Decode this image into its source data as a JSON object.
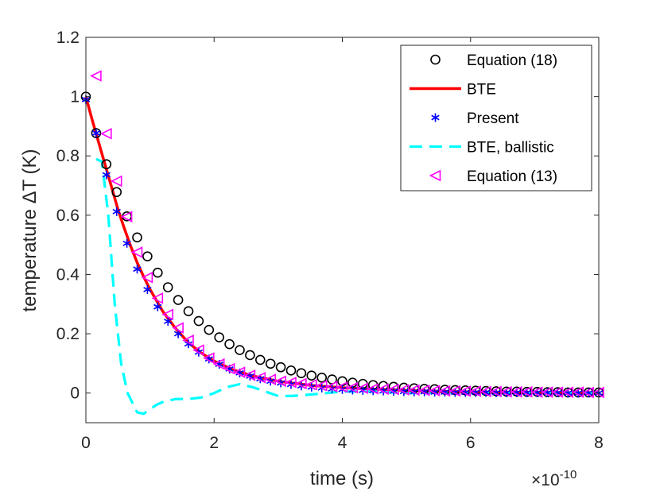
{
  "chart_data": {
    "type": "line",
    "xlabel": "time (s)",
    "ylabel": "temperature ΔT (K)",
    "x_exponent_label": "×10",
    "x_exponent": "-10",
    "xlim": [
      0,
      8e-10
    ],
    "ylim": [
      -0.1,
      1.2
    ],
    "xticks": [
      0,
      2e-10,
      4e-10,
      6e-10,
      8e-10
    ],
    "xtick_labels": [
      "0",
      "2",
      "4",
      "6",
      "8"
    ],
    "yticks": [
      0,
      0.2,
      0.4,
      0.6,
      0.8,
      1.0,
      1.2
    ],
    "ytick_labels": [
      "0",
      "0.2",
      "0.4",
      "0.6",
      "0.8",
      "1",
      "1.2"
    ],
    "grid": false,
    "legend_position": "top-right",
    "series": [
      {
        "name": "Equation (18)",
        "style": "markers",
        "marker": "circle",
        "color": "#000000",
        "x": [
          0,
          1.6e-11,
          3.2e-11,
          4.8e-11,
          6.4e-11,
          8e-11,
          9.6e-11,
          1.12e-10,
          1.28e-10,
          1.44e-10,
          1.6e-10,
          1.76e-10,
          1.92e-10,
          2.08e-10,
          2.24e-10,
          2.4e-10,
          2.56e-10,
          2.72e-10,
          2.88e-10,
          3.04e-10,
          3.2e-10,
          3.36e-10,
          3.52e-10,
          3.68e-10,
          3.84e-10,
          4e-10,
          4.16e-10,
          4.32e-10,
          4.48e-10,
          4.64e-10,
          4.8e-10,
          4.96e-10,
          5.12e-10,
          5.28e-10,
          5.44e-10,
          5.6e-10,
          5.76e-10,
          5.92e-10,
          6.08e-10,
          6.24e-10,
          6.4e-10,
          6.56e-10,
          6.72e-10,
          6.88e-10,
          7.04e-10,
          7.2e-10,
          7.36e-10,
          7.52e-10,
          7.68e-10,
          7.84e-10,
          8e-10
        ],
        "y": [
          1.0,
          0.877,
          0.772,
          0.678,
          0.596,
          0.525,
          0.461,
          0.406,
          0.357,
          0.314,
          0.276,
          0.243,
          0.213,
          0.188,
          0.165,
          0.145,
          0.128,
          0.112,
          0.099,
          0.087,
          0.076,
          0.067,
          0.059,
          0.052,
          0.046,
          0.04,
          0.035,
          0.031,
          0.027,
          0.024,
          0.021,
          0.018,
          0.016,
          0.014,
          0.013,
          0.011,
          0.01,
          0.009,
          0.008,
          0.007,
          0.006,
          0.005,
          0.005,
          0.004,
          0.004,
          0.003,
          0.003,
          0.002,
          0.002,
          0.002,
          0.002
        ]
      },
      {
        "name": "BTE",
        "style": "line",
        "color": "#ff0000",
        "x": [
          0,
          5e-12,
          1e-11,
          2e-11,
          3e-11,
          4e-11,
          5e-11,
          6e-11,
          7e-11,
          8e-11,
          9e-11,
          1e-10,
          1.2e-10,
          1.4e-10,
          1.6e-10,
          1.8e-10,
          2e-10,
          2.3e-10,
          2.6e-10,
          3e-10,
          3.5e-10,
          4e-10,
          4.5e-10,
          5e-10,
          5.5e-10,
          6e-10,
          6.5e-10,
          7e-10,
          7.5e-10,
          8e-10
        ],
        "y": [
          1.0,
          0.96,
          0.92,
          0.845,
          0.77,
          0.695,
          0.62,
          0.555,
          0.495,
          0.44,
          0.393,
          0.35,
          0.275,
          0.218,
          0.17,
          0.135,
          0.108,
          0.078,
          0.058,
          0.04,
          0.026,
          0.018,
          0.013,
          0.009,
          0.006,
          0.004,
          0.003,
          0.002,
          0.001,
          0.001
        ]
      },
      {
        "name": "Present",
        "style": "markers",
        "marker": "asterisk",
        "color": "#0000ff",
        "x": [
          0,
          1.6e-11,
          3.2e-11,
          4.8e-11,
          6.4e-11,
          8e-11,
          9.6e-11,
          1.12e-10,
          1.28e-10,
          1.44e-10,
          1.6e-10,
          1.76e-10,
          1.92e-10,
          2.08e-10,
          2.24e-10,
          2.4e-10,
          2.56e-10,
          2.72e-10,
          2.88e-10,
          3.04e-10,
          3.2e-10,
          3.36e-10,
          3.52e-10,
          3.68e-10,
          3.84e-10,
          4e-10,
          4.16e-10,
          4.32e-10,
          4.48e-10,
          4.64e-10,
          4.8e-10,
          4.96e-10,
          5.12e-10,
          5.28e-10,
          5.44e-10,
          5.6e-10,
          5.76e-10,
          5.92e-10,
          6.08e-10,
          6.24e-10,
          6.4e-10,
          6.56e-10,
          6.72e-10,
          6.88e-10,
          7.04e-10,
          7.2e-10,
          7.36e-10,
          7.52e-10,
          7.68e-10,
          7.84e-10,
          8e-10
        ],
        "y": [
          0.99,
          0.877,
          0.736,
          0.612,
          0.505,
          0.418,
          0.349,
          0.291,
          0.242,
          0.2,
          0.166,
          0.138,
          0.115,
          0.097,
          0.081,
          0.068,
          0.057,
          0.048,
          0.04,
          0.034,
          0.029,
          0.024,
          0.02,
          0.017,
          0.014,
          0.012,
          0.01,
          0.009,
          0.008,
          0.007,
          0.006,
          0.005,
          0.004,
          0.004,
          0.003,
          0.003,
          0.002,
          0.002,
          0.002,
          0.002,
          0.001,
          0.001,
          0.001,
          0.001,
          0.001,
          0.001,
          0.001,
          0.0,
          0.0,
          0.0,
          0.0
        ]
      },
      {
        "name": "BTE, ballistic",
        "style": "dashed-line",
        "color": "#00ffff",
        "x": [
          1.6e-11,
          2.5e-11,
          3.5e-11,
          4.5e-11,
          5.5e-11,
          6.5e-11,
          8e-11,
          9e-11,
          1e-10,
          1.1e-10,
          1.2e-10,
          1.4e-10,
          1.6e-10,
          1.8e-10,
          2e-10,
          2.2e-10,
          2.4e-10,
          2.6e-10,
          2.8e-10,
          3e-10,
          3.2e-10,
          3.5e-10,
          4e-10,
          4.5e-10,
          5e-10,
          6e-10,
          7e-10,
          8e-10
        ],
        "y": [
          0.79,
          0.78,
          0.6,
          0.3,
          0.1,
          0.0,
          -0.065,
          -0.07,
          -0.055,
          -0.04,
          -0.03,
          -0.02,
          -0.02,
          -0.015,
          0.0,
          0.02,
          0.03,
          0.02,
          0.005,
          -0.01,
          -0.01,
          -0.005,
          0.005,
          0.005,
          0.0,
          0.0,
          0.0,
          0.0
        ]
      },
      {
        "name": "Equation (13)",
        "style": "markers",
        "marker": "triangle-left",
        "color": "#ff00ff",
        "x": [
          1.6e-11,
          3.2e-11,
          4.8e-11,
          6.4e-11,
          8e-11,
          9.6e-11,
          1.12e-10,
          1.28e-10,
          1.44e-10,
          1.6e-10,
          1.76e-10,
          1.92e-10,
          2.08e-10,
          2.24e-10,
          2.4e-10,
          2.56e-10,
          2.72e-10,
          2.88e-10,
          3.04e-10,
          3.2e-10,
          3.36e-10,
          3.52e-10,
          3.68e-10,
          3.84e-10,
          4e-10,
          4.16e-10,
          4.32e-10,
          4.48e-10,
          4.64e-10,
          4.8e-10,
          4.96e-10,
          5.12e-10,
          5.28e-10,
          5.44e-10,
          5.6e-10,
          5.76e-10,
          5.92e-10,
          6.08e-10,
          6.24e-10,
          6.4e-10,
          6.56e-10,
          6.72e-10,
          6.88e-10,
          7.04e-10,
          7.2e-10,
          7.36e-10,
          7.52e-10,
          7.68e-10,
          7.84e-10,
          8e-10
        ],
        "y": [
          1.07,
          0.875,
          0.715,
          0.595,
          0.475,
          0.39,
          0.32,
          0.265,
          0.22,
          0.178,
          0.145,
          0.118,
          0.098,
          0.082,
          0.07,
          0.06,
          0.052,
          0.046,
          0.04,
          0.036,
          0.032,
          0.028,
          0.025,
          0.022,
          0.02,
          0.018,
          0.016,
          0.014,
          0.013,
          0.012,
          0.011,
          0.01,
          0.009,
          0.008,
          0.007,
          0.007,
          0.006,
          0.006,
          0.005,
          0.005,
          0.004,
          0.004,
          0.004,
          0.003,
          0.003,
          0.003,
          0.003,
          0.003,
          0.002,
          0.002
        ]
      }
    ]
  }
}
